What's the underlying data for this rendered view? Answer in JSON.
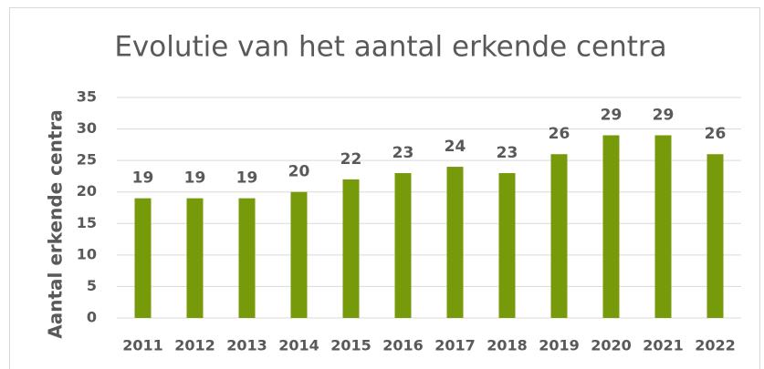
{
  "chart_data": {
    "type": "bar",
    "title": "Evolutie van het aantal erkende centra",
    "y_label": "Aantal erkende centra",
    "categories": [
      "2011",
      "2012",
      "2013",
      "2014",
      "2015",
      "2016",
      "2017",
      "2018",
      "2019",
      "2020",
      "2021",
      "2022"
    ],
    "values": [
      19,
      19,
      19,
      20,
      22,
      23,
      24,
      23,
      26,
      29,
      29,
      26
    ],
    "color": "#779a0b",
    "ylim": [
      0,
      35
    ],
    "yticks": [
      0,
      5,
      10,
      15,
      20,
      25,
      30,
      35
    ],
    "grid": true,
    "data_labels": true
  }
}
